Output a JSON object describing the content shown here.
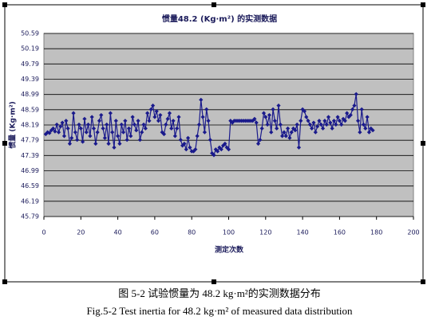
{
  "chart_data": {
    "type": "line",
    "title": "惯量48.2 (Kg·m²) 的实测数据",
    "xlabel": "测定次数",
    "ylabel": "惯量 (Kg·m²)",
    "caption_cn": "图 5-2 试验惯量为 48.2 kg·m²的实测数据分布",
    "caption_en": "Fig.5-2 Test inertia for 48.2 kg·m² of measured data distribution",
    "xlim": [
      0,
      200
    ],
    "xticks": [
      0,
      20,
      40,
      60,
      80,
      100,
      120,
      140,
      160,
      180,
      200
    ],
    "ylim": [
      45.79,
      50.59
    ],
    "yticks": [
      45.79,
      46.19,
      46.59,
      46.99,
      47.39,
      47.79,
      48.19,
      48.59,
      48.99,
      49.39,
      49.79,
      50.19,
      50.59
    ],
    "grid": true,
    "plot_background": "#c0c0c0",
    "x": [
      1,
      2,
      3,
      4,
      5,
      6,
      7,
      8,
      9,
      10,
      11,
      12,
      13,
      14,
      15,
      16,
      17,
      18,
      19,
      20,
      21,
      22,
      23,
      24,
      25,
      26,
      27,
      28,
      29,
      30,
      31,
      32,
      33,
      34,
      35,
      36,
      37,
      38,
      39,
      40,
      41,
      42,
      43,
      44,
      45,
      46,
      47,
      48,
      49,
      50,
      51,
      52,
      53,
      54,
      55,
      56,
      57,
      58,
      59,
      60,
      61,
      62,
      63,
      64,
      65,
      66,
      67,
      68,
      69,
      70,
      71,
      72,
      73,
      74,
      75,
      76,
      77,
      78,
      79,
      80,
      81,
      82,
      83,
      84,
      85,
      86,
      87,
      88,
      89,
      90,
      91,
      92,
      93,
      94,
      95,
      96,
      97,
      98,
      99,
      100,
      101,
      102,
      103,
      104,
      105,
      106,
      107,
      108,
      109,
      110,
      111,
      112,
      113,
      114,
      115,
      116,
      117,
      118,
      119,
      120,
      121,
      122,
      123,
      124,
      125,
      126,
      127,
      128,
      129,
      130,
      131,
      132,
      133,
      134,
      135,
      136,
      137,
      138,
      139,
      140,
      141,
      142,
      143,
      144,
      145,
      146,
      147,
      148,
      149,
      150,
      151,
      152,
      153,
      154,
      155,
      156,
      157,
      158,
      159,
      160,
      161,
      162,
      163,
      164,
      165,
      166,
      167,
      168,
      169,
      170,
      171,
      172,
      173,
      174,
      175,
      176,
      177,
      178
    ],
    "series": [
      {
        "name": "实测数据",
        "color": "#1a1a8c",
        "values": [
          47.95,
          48.0,
          47.98,
          48.05,
          48.1,
          48.02,
          48.2,
          48.0,
          48.15,
          48.25,
          47.9,
          48.3,
          48.1,
          47.7,
          47.85,
          48.5,
          48.0,
          47.8,
          48.2,
          48.1,
          47.75,
          48.35,
          48.0,
          48.2,
          47.9,
          48.4,
          48.1,
          47.7,
          48.0,
          48.3,
          48.45,
          48.1,
          47.85,
          48.2,
          47.7,
          48.5,
          48.0,
          47.6,
          48.3,
          47.9,
          47.7,
          48.2,
          48.0,
          48.3,
          47.8,
          48.1,
          47.9,
          48.4,
          48.2,
          48.05,
          48.3,
          47.8,
          48.0,
          48.2,
          48.1,
          48.5,
          48.3,
          48.6,
          48.7,
          48.4,
          48.55,
          48.3,
          48.45,
          48.0,
          47.95,
          48.2,
          48.35,
          48.5,
          48.1,
          48.3,
          47.9,
          48.1,
          48.4,
          47.8,
          47.65,
          47.7,
          47.55,
          47.85,
          47.6,
          47.5,
          47.5,
          47.55,
          47.9,
          48.2,
          48.85,
          48.4,
          48.0,
          48.6,
          48.3,
          47.8,
          47.45,
          47.4,
          47.55,
          47.5,
          47.6,
          47.55,
          47.65,
          47.7,
          47.6,
          47.55,
          48.3,
          48.25,
          48.3,
          48.3,
          48.3,
          48.3,
          48.3,
          48.3,
          48.3,
          48.3,
          48.3,
          48.3,
          48.3,
          48.35,
          48.25,
          47.7,
          47.8,
          48.1,
          48.5,
          48.4,
          48.2,
          48.45,
          48.0,
          48.6,
          48.3,
          48.1,
          48.7,
          48.2,
          47.9,
          48.0,
          47.9,
          48.1,
          47.85,
          48.0,
          48.1,
          48.05,
          48.2,
          47.6,
          48.3,
          48.6,
          48.55,
          48.4,
          48.3,
          48.2,
          48.1,
          48.25,
          48.0,
          48.15,
          48.3,
          48.2,
          48.1,
          48.3,
          48.2,
          48.4,
          48.25,
          48.1,
          48.3,
          48.2,
          48.4,
          48.3,
          48.2,
          48.35,
          48.3,
          48.5,
          48.4,
          48.45,
          48.6,
          48.7,
          49.0,
          48.3,
          48.0,
          48.6,
          48.2,
          48.1,
          48.4,
          48.0,
          48.1,
          48.05
        ]
      }
    ]
  }
}
